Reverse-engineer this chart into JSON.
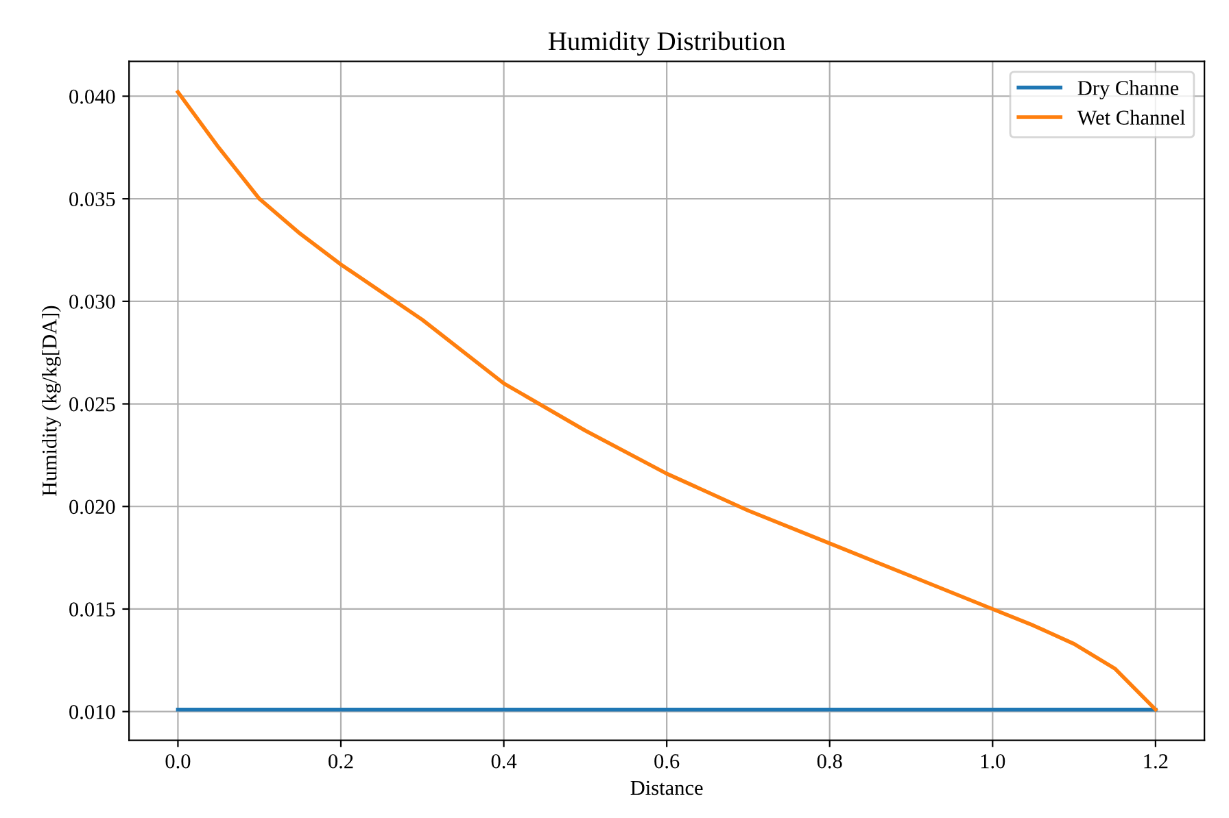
{
  "chart_data": {
    "type": "line",
    "title": "Humidity Distribution",
    "xlabel": "Distance",
    "ylabel": "Humidity (kg/kg[DA])",
    "x": [
      0.0,
      0.05,
      0.1,
      0.15,
      0.2,
      0.3,
      0.4,
      0.5,
      0.6,
      0.7,
      0.8,
      0.9,
      1.0,
      1.05,
      1.1,
      1.15,
      1.2
    ],
    "series": [
      {
        "name": "Dry Channe",
        "color": "#1f77b4",
        "values": [
          0.0101,
          0.0101,
          0.0101,
          0.0101,
          0.0101,
          0.0101,
          0.0101,
          0.0101,
          0.0101,
          0.0101,
          0.0101,
          0.0101,
          0.0101,
          0.0101,
          0.0101,
          0.0101,
          0.0101
        ]
      },
      {
        "name": "Wet Channel",
        "color": "#ff7f0e",
        "values": [
          0.0402,
          0.0375,
          0.035,
          0.0333,
          0.0318,
          0.0291,
          0.026,
          0.0237,
          0.0216,
          0.0198,
          0.0182,
          0.0166,
          0.015,
          0.0142,
          0.0133,
          0.0121,
          0.0101
        ]
      }
    ],
    "xlim": [
      -0.06,
      1.26
    ],
    "xticks": [
      {
        "value": 0,
        "label": "0.0"
      },
      0.2,
      0.4,
      0.6,
      0.8,
      {
        "value": 1,
        "label": "1.0"
      },
      1.2
    ],
    "ylim": [
      0.0086,
      0.0417
    ],
    "yticks": [
      {
        "value": 0.01,
        "label": "0.010"
      },
      0.015,
      {
        "value": 0.02,
        "label": "0.020"
      },
      0.025,
      {
        "value": 0.03,
        "label": "0.030"
      },
      0.035,
      {
        "value": 0.04,
        "label": "0.040"
      }
    ],
    "grid": true,
    "legend": "top right",
    "line_style": "solid",
    "marker": "none"
  }
}
